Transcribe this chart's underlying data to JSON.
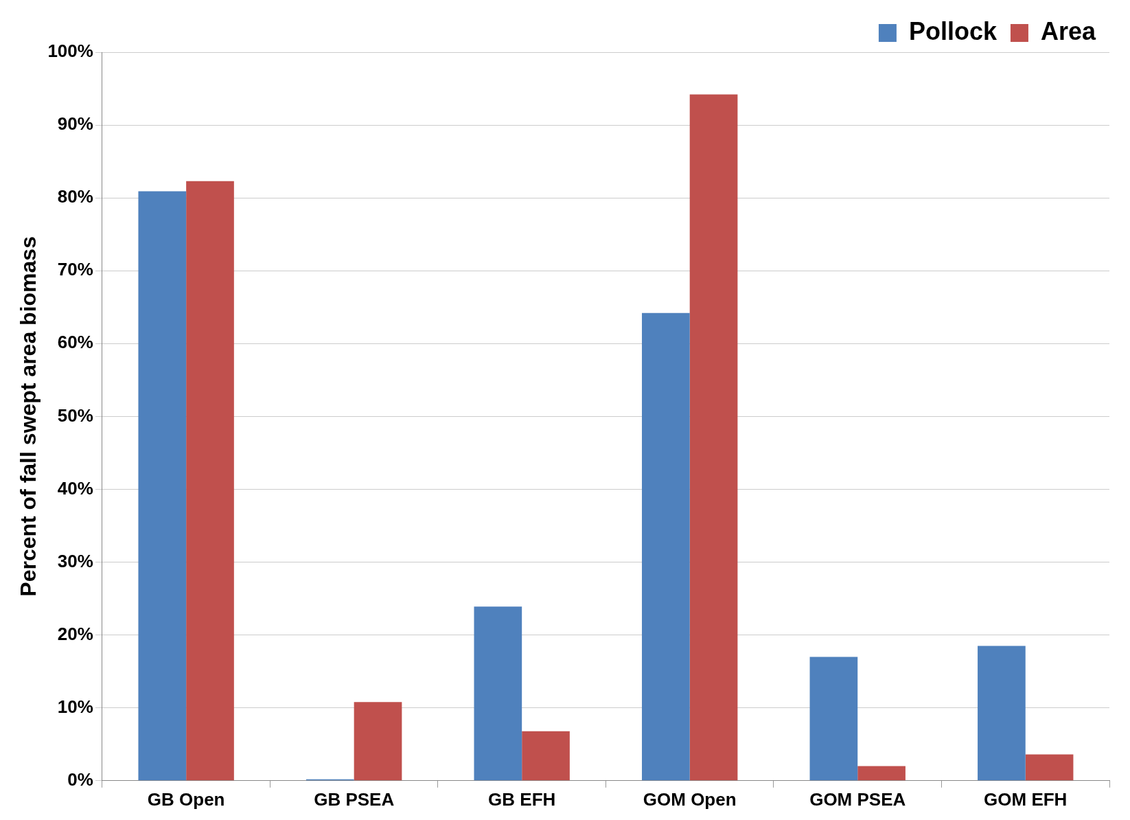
{
  "chart_data": {
    "type": "bar",
    "ylabel": "Percent of fall swept area biomass",
    "categories": [
      "GB Open",
      "GB PSEA",
      "GB EFH",
      "GOM Open",
      "GOM PSEA",
      "GOM EFH"
    ],
    "series": [
      {
        "name": "Pollock",
        "color": "#4f81bd",
        "values": [
          80.9,
          0.2,
          23.9,
          64.2,
          17.0,
          18.5
        ]
      },
      {
        "name": "Area",
        "color": "#c0504d",
        "values": [
          82.3,
          10.8,
          6.8,
          94.2,
          2.0,
          3.6
        ]
      }
    ],
    "ylim": [
      0,
      100
    ],
    "yticks": [
      {
        "value": 0,
        "label": "0%"
      },
      {
        "value": 10,
        "label": "10%"
      },
      {
        "value": 20,
        "label": "20%"
      },
      {
        "value": 30,
        "label": "30%"
      },
      {
        "value": 40,
        "label": "40%"
      },
      {
        "value": 50,
        "label": "50%"
      },
      {
        "value": 60,
        "label": "60%"
      },
      {
        "value": 70,
        "label": "70%"
      },
      {
        "value": 80,
        "label": "80%"
      },
      {
        "value": 90,
        "label": "90%"
      },
      {
        "value": 100,
        "label": "100%"
      }
    ],
    "grid": "y",
    "legend": "top right"
  }
}
